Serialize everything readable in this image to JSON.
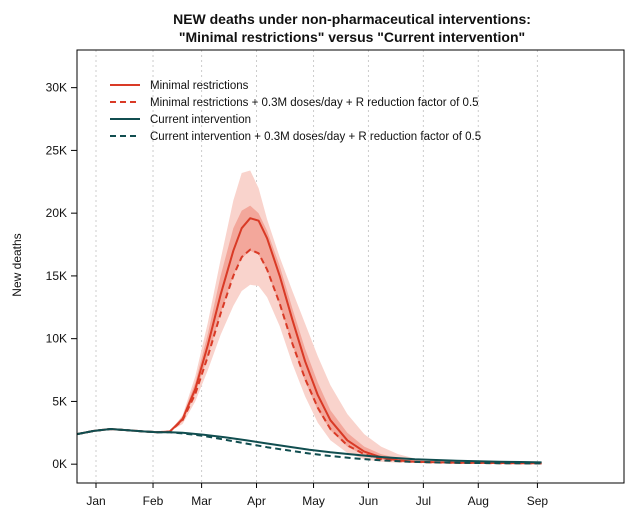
{
  "chart_data": {
    "type": "line",
    "title_line1": "NEW deaths under non-pharmaceutical interventions:",
    "title_line2": "\"Minimal restrictions\" versus \"Current intervention\"",
    "xlabel": "",
    "ylabel": "New deaths",
    "x_unit": "day of year (day 1 = Jan 1)",
    "xlim": [
      0,
      259
    ],
    "ylim": [
      -1500,
      33000
    ],
    "y_ticks": [
      0,
      5000,
      10000,
      15000,
      20000,
      25000,
      30000
    ],
    "y_tick_labels": [
      "0K",
      "5K",
      "10K",
      "15K",
      "20K",
      "25K",
      "30K"
    ],
    "x_ticks": [
      {
        "label": "Jan",
        "day": 9
      },
      {
        "label": "Feb",
        "day": 36
      },
      {
        "label": "Mar",
        "day": 59
      },
      {
        "label": "Apr",
        "day": 85
      },
      {
        "label": "May",
        "day": 112
      },
      {
        "label": "Jun",
        "day": 138
      },
      {
        "label": "Jul",
        "day": 164
      },
      {
        "label": "Aug",
        "day": 190
      },
      {
        "label": "Sep",
        "day": 218
      }
    ],
    "grid_x": true,
    "legend_position": "top-left",
    "colors": {
      "minimal": "#d93a26",
      "current": "#114e50",
      "band_outer": "#f9d3cc",
      "band_inner": "#f3a79b"
    },
    "series": [
      {
        "name": "Minimal restrictions",
        "style": "solid",
        "color": "#d93a26",
        "x": [
          0,
          8,
          16,
          24,
          32,
          38,
          44,
          50,
          56,
          62,
          68,
          74,
          78,
          82,
          86,
          90,
          96,
          102,
          108,
          114,
          120,
          128,
          136,
          144,
          152,
          160,
          170,
          180,
          190,
          200,
          210,
          220
        ],
        "y": [
          2400,
          2650,
          2800,
          2700,
          2600,
          2550,
          2600,
          3600,
          6000,
          9500,
          13500,
          17000,
          18800,
          19600,
          19400,
          18000,
          15000,
          11500,
          8200,
          5500,
          3500,
          1900,
          1000,
          550,
          300,
          200,
          150,
          120,
          100,
          90,
          80,
          70
        ]
      },
      {
        "name": "Minimal restrictions + 0.3M doses/day + R reduction factor of 0.5",
        "style": "dashed",
        "color": "#d93a26",
        "x": [
          0,
          8,
          16,
          24,
          32,
          38,
          44,
          50,
          56,
          62,
          68,
          74,
          78,
          82,
          86,
          90,
          96,
          102,
          108,
          114,
          120,
          128,
          136,
          144,
          152,
          160,
          170,
          180,
          190,
          200,
          210,
          220
        ],
        "y": [
          2400,
          2650,
          2800,
          2700,
          2600,
          2550,
          2600,
          3500,
          5600,
          8600,
          12000,
          15000,
          16500,
          17100,
          16800,
          15500,
          12800,
          9600,
          6800,
          4500,
          2800,
          1500,
          800,
          400,
          250,
          180,
          130,
          110,
          90,
          80,
          70,
          60
        ]
      },
      {
        "name": "Current intervention",
        "style": "solid",
        "color": "#114e50",
        "x": [
          0,
          8,
          16,
          24,
          32,
          38,
          44,
          50,
          60,
          70,
          80,
          90,
          100,
          110,
          120,
          130,
          140,
          150,
          160,
          170,
          180,
          190,
          200,
          210,
          220
        ],
        "y": [
          2400,
          2650,
          2800,
          2700,
          2600,
          2550,
          2550,
          2500,
          2350,
          2150,
          1900,
          1650,
          1400,
          1150,
          950,
          780,
          620,
          500,
          400,
          330,
          280,
          240,
          200,
          170,
          140
        ]
      },
      {
        "name": "Current intervention + 0.3M doses/day + R reduction factor of 0.5",
        "style": "dashed",
        "color": "#114e50",
        "x": [
          0,
          8,
          16,
          24,
          32,
          38,
          44,
          50,
          60,
          70,
          80,
          90,
          100,
          110,
          120,
          130,
          140,
          150,
          160,
          170,
          180,
          190,
          200,
          210,
          220
        ],
        "y": [
          2400,
          2650,
          2800,
          2700,
          2600,
          2550,
          2550,
          2450,
          2250,
          1950,
          1650,
          1350,
          1100,
          850,
          650,
          480,
          350,
          250,
          180,
          140,
          110,
          90,
          80,
          70,
          60
        ]
      }
    ],
    "bands": [
      {
        "of": "Minimal restrictions",
        "level": "outer",
        "x": [
          44,
          50,
          56,
          62,
          68,
          74,
          78,
          82,
          86,
          90,
          96,
          102,
          108,
          114,
          120,
          128,
          136,
          144,
          152,
          160,
          170,
          180,
          190,
          200,
          210,
          220
        ],
        "lower": [
          2600,
          3200,
          5000,
          7500,
          10300,
          12600,
          13800,
          14300,
          14200,
          13300,
          11000,
          8000,
          5400,
          3300,
          1900,
          900,
          400,
          200,
          120,
          90,
          70,
          60,
          50,
          45,
          40,
          35
        ],
        "upper": [
          2600,
          3900,
          7000,
          11300,
          16300,
          21000,
          23200,
          23400,
          22000,
          19500,
          16500,
          13800,
          11200,
          8600,
          6300,
          4000,
          2400,
          1400,
          800,
          450,
          250,
          180,
          150,
          130,
          110,
          100
        ]
      },
      {
        "of": "Minimal restrictions",
        "level": "inner",
        "x": [
          44,
          50,
          56,
          62,
          68,
          74,
          78,
          82,
          86,
          90,
          96,
          102,
          108,
          114,
          120,
          128,
          136,
          144,
          152,
          160,
          170,
          180,
          190,
          200,
          210,
          220
        ],
        "lower": [
          2600,
          3400,
          5600,
          8600,
          12000,
          15000,
          16400,
          17000,
          16700,
          15400,
          12700,
          9500,
          6600,
          4300,
          2700,
          1400,
          700,
          350,
          200,
          150,
          110,
          90,
          80,
          70,
          60,
          50
        ],
        "upper": [
          2600,
          3800,
          6500,
          10400,
          15000,
          18800,
          20200,
          20600,
          20000,
          18600,
          15800,
          12400,
          9200,
          6500,
          4300,
          2500,
          1400,
          800,
          450,
          280,
          180,
          140,
          110,
          100,
          90,
          80
        ]
      }
    ]
  }
}
